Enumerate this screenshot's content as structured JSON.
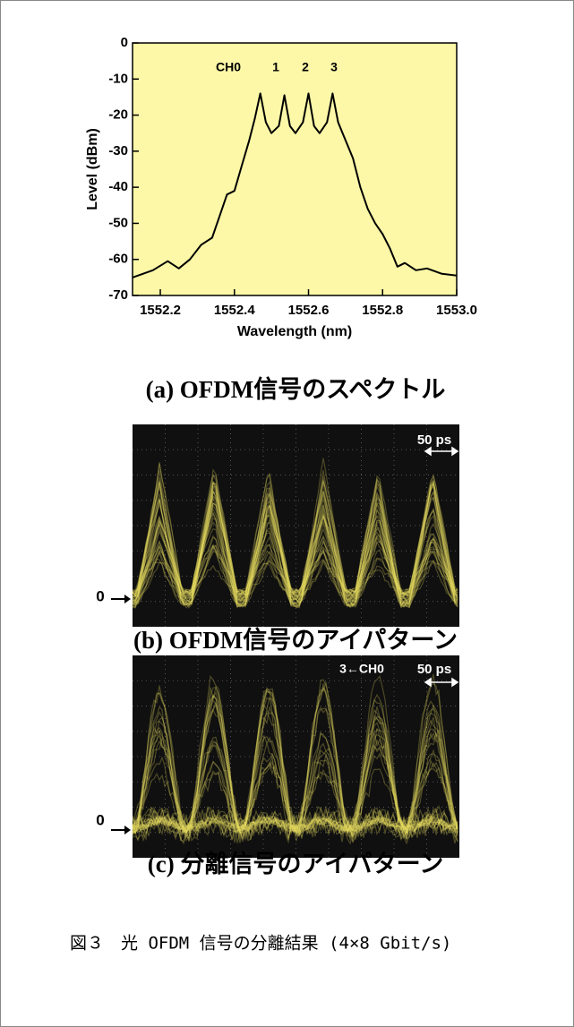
{
  "chart_data": {
    "type": "line",
    "y_label": "Level (dBm)",
    "x_label": "Wavelength (nm)",
    "caption": "(a) OFDM信号のスペクトル",
    "annotations": [
      "CH0",
      "1",
      "2",
      "3"
    ],
    "color": "#000000",
    "x": [
      1552.125,
      1552.18,
      1552.22,
      1552.25,
      1552.28,
      1552.31,
      1552.34,
      1552.36,
      1552.38,
      1552.4,
      1552.42,
      1552.44,
      1552.455,
      1552.47,
      1552.485,
      1552.5,
      1552.52,
      1552.535,
      1552.55,
      1552.565,
      1552.585,
      1552.6,
      1552.615,
      1552.63,
      1552.65,
      1552.665,
      1552.68,
      1552.7,
      1552.72,
      1552.74,
      1552.76,
      1552.78,
      1552.8,
      1552.82,
      1552.84,
      1552.86,
      1552.89,
      1552.92,
      1552.96,
      1553.0
    ],
    "values": [
      -65,
      -63,
      -60.5,
      -62.5,
      -60,
      -56,
      -54,
      -48,
      -42,
      -41,
      -34,
      -27,
      -21,
      -14,
      -22,
      -25,
      -23,
      -14.5,
      -23,
      -25,
      -22,
      -14,
      -23,
      -25,
      -22,
      -14,
      -22,
      -27,
      -32,
      -40,
      -46,
      -50,
      -53,
      -57,
      -62,
      -61,
      -63,
      -62.5,
      -64,
      -64.5
    ],
    "xlim": [
      1552.125,
      1553.0
    ],
    "xticks": [
      1552.2,
      1552.4,
      1552.6,
      1552.8,
      {
        "value": 1553,
        "label": "1553.0"
      }
    ],
    "ylim": [
      -70,
      0
    ],
    "yticks": [
      0,
      -10,
      -20,
      -30,
      -40,
      -50,
      -60,
      -70
    ]
  },
  "eye_diagrams": [
    {
      "caption": "(b) OFDM信号のアイパターン",
      "scale_label": "50 ps",
      "zero_label": "0"
    },
    {
      "caption": "(c) 分離信号のアイパターン",
      "scale_label": "50 ps",
      "zero_label": "0",
      "channel_label": "3←CH0"
    }
  ],
  "figure_caption": "図３　光 OFDM 信号の分離結果 (4×8 Gbit/s)"
}
